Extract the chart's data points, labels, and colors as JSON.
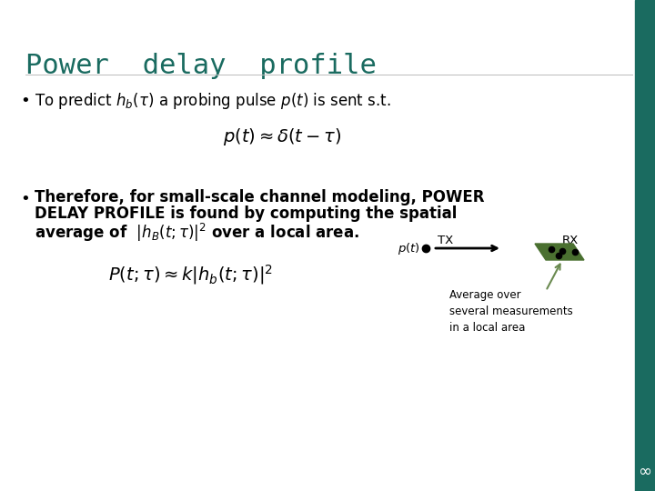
{
  "title": "Power  delay  profile",
  "title_color": "#1a6b60",
  "title_fontsize": 22,
  "bg_color": "#ffffff",
  "teal_color": "#1a6b60",
  "bullet_fontsize": 12,
  "eq1_fontsize": 14,
  "eq2_fontsize": 14,
  "tx_label": "TX",
  "rx_label": "RX",
  "avg_label": "Average over\nseveral measurements\nin a local area",
  "slide_number": "∞",
  "right_bar_color": "#1a6b60",
  "rx_board_color": "#4a7030",
  "arrow_color": "#6a8a50"
}
